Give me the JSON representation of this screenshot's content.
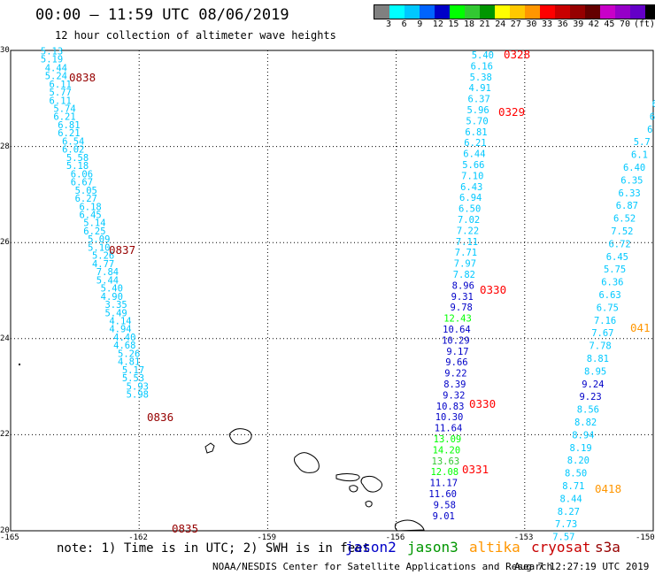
{
  "header": {
    "title": "00:00 — 11:59 UTC 08/06/2019",
    "subtitle": "12 hour collection of altimeter wave heights"
  },
  "colorbar": {
    "colors": [
      "#808080",
      "#00ffff",
      "#00c8ff",
      "#0064ff",
      "#0000c8",
      "#00ff00",
      "#32c832",
      "#009600",
      "#ffff00",
      "#ffc800",
      "#ff9600",
      "#ff0000",
      "#c80000",
      "#960000",
      "#640000",
      "#c800c8",
      "#9600c8",
      "#6400c8",
      "#000000"
    ],
    "labels": [
      "3",
      "6",
      "9",
      "12",
      "15",
      "18",
      "21",
      "24",
      "27",
      "30",
      "33",
      "36",
      "39",
      "42",
      "45",
      "70"
    ],
    "unit": "(ft)"
  },
  "axes": {
    "lat_ticks": [
      "30",
      "28",
      "26",
      "24",
      "22",
      "20"
    ],
    "lon_ticks": [
      "-165",
      "-162",
      "-159",
      "-156",
      "-153",
      "-150"
    ],
    "lat_range": [
      20,
      30
    ],
    "lon_range": [
      -165,
      -150
    ],
    "grid": "dotted"
  },
  "satellite_colors": {
    "jason2": "#0000c8",
    "jason3": "#009600",
    "altika": "#ff9600",
    "cryosat": "#c80000",
    "s3a": "#960000"
  },
  "tracks": [
    {
      "satellite": "s3a",
      "points": [
        {
          "lon": -164.3,
          "lat": 29.92,
          "v": "5.13",
          "c": "#00c8ff"
        },
        {
          "lon": -164.3,
          "lat": 29.75,
          "v": "5.19",
          "c": "#00c8ff"
        },
        {
          "lon": -164.2,
          "lat": 29.57,
          "v": "4.44",
          "c": "#00c8ff"
        },
        {
          "lon": -164.2,
          "lat": 29.4,
          "v": "5.24",
          "c": "#00c8ff"
        },
        {
          "lon": -164.1,
          "lat": 29.23,
          "v": "6.11",
          "c": "#00c8ff"
        },
        {
          "lon": -164.1,
          "lat": 29.06,
          "v": "5.77",
          "c": "#00c8ff"
        },
        {
          "lon": -164.1,
          "lat": 28.89,
          "v": "6.11",
          "c": "#00c8ff"
        },
        {
          "lon": -164.0,
          "lat": 28.72,
          "v": "5.74",
          "c": "#00c8ff"
        },
        {
          "lon": -164.0,
          "lat": 28.55,
          "v": "6.21",
          "c": "#00c8ff"
        },
        {
          "lon": -163.9,
          "lat": 28.38,
          "v": "6.81",
          "c": "#00c8ff"
        },
        {
          "lon": -163.9,
          "lat": 28.21,
          "v": "6.21",
          "c": "#00c8ff"
        },
        {
          "lon": -163.8,
          "lat": 28.04,
          "v": "6.54",
          "c": "#00c8ff"
        },
        {
          "lon": -163.8,
          "lat": 27.87,
          "v": "6.02",
          "c": "#00c8ff"
        },
        {
          "lon": -163.7,
          "lat": 27.7,
          "v": "5.58",
          "c": "#00c8ff"
        },
        {
          "lon": -163.7,
          "lat": 27.53,
          "v": "5.18",
          "c": "#00c8ff"
        },
        {
          "lon": -163.6,
          "lat": 27.36,
          "v": "6.06",
          "c": "#00c8ff"
        },
        {
          "lon": -163.6,
          "lat": 27.19,
          "v": "6.67",
          "c": "#00c8ff"
        },
        {
          "lon": -163.5,
          "lat": 27.02,
          "v": "5.05",
          "c": "#00c8ff"
        },
        {
          "lon": -163.5,
          "lat": 26.85,
          "v": "6.27",
          "c": "#00c8ff"
        },
        {
          "lon": -163.4,
          "lat": 26.68,
          "v": "6.18",
          "c": "#00c8ff"
        },
        {
          "lon": -163.4,
          "lat": 26.51,
          "v": "6.45",
          "c": "#00c8ff"
        },
        {
          "lon": -163.3,
          "lat": 26.34,
          "v": "5.14",
          "c": "#00c8ff"
        },
        {
          "lon": -163.3,
          "lat": 26.17,
          "v": "6.25",
          "c": "#00c8ff"
        },
        {
          "lon": -163.2,
          "lat": 26.0,
          "v": "5.09",
          "c": "#00c8ff"
        },
        {
          "lon": -163.2,
          "lat": 25.83,
          "v": "5.10",
          "c": "#00c8ff"
        },
        {
          "lon": -163.1,
          "lat": 25.66,
          "v": "5.26",
          "c": "#00c8ff"
        },
        {
          "lon": -163.1,
          "lat": 25.49,
          "v": "4.77",
          "c": "#00c8ff"
        },
        {
          "lon": -163.0,
          "lat": 25.32,
          "v": "7.84",
          "c": "#00c8ff"
        },
        {
          "lon": -163.0,
          "lat": 25.15,
          "v": "5.44",
          "c": "#00c8ff"
        },
        {
          "lon": -162.9,
          "lat": 24.98,
          "v": "5.40",
          "c": "#00c8ff"
        },
        {
          "lon": -162.9,
          "lat": 24.81,
          "v": "4.90",
          "c": "#00c8ff"
        },
        {
          "lon": -162.8,
          "lat": 24.64,
          "v": "3.35",
          "c": "#00c8ff"
        },
        {
          "lon": -162.8,
          "lat": 24.47,
          "v": "5.49",
          "c": "#00c8ff"
        },
        {
          "lon": -162.7,
          "lat": 24.3,
          "v": "4.14",
          "c": "#00c8ff"
        },
        {
          "lon": -162.7,
          "lat": 24.13,
          "v": "4.94",
          "c": "#00c8ff"
        },
        {
          "lon": -162.6,
          "lat": 23.96,
          "v": "4.40",
          "c": "#00c8ff"
        },
        {
          "lon": -162.6,
          "lat": 23.79,
          "v": "4.68",
          "c": "#00c8ff"
        },
        {
          "lon": -162.5,
          "lat": 23.62,
          "v": "5.26",
          "c": "#00c8ff"
        },
        {
          "lon": -162.5,
          "lat": 23.45,
          "v": "4.81",
          "c": "#00c8ff"
        },
        {
          "lon": -162.4,
          "lat": 23.28,
          "v": "5.17",
          "c": "#00c8ff"
        },
        {
          "lon": -162.4,
          "lat": 23.11,
          "v": "5.53",
          "c": "#00c8ff"
        },
        {
          "lon": -162.3,
          "lat": 22.94,
          "v": "5.93",
          "c": "#00c8ff"
        },
        {
          "lon": -162.3,
          "lat": 22.77,
          "v": "5.98",
          "c": "#00c8ff"
        }
      ]
    }
  ],
  "pass_labels": [
    {
      "text": "0838",
      "c": "#960000"
    },
    {
      "text": "0837",
      "c": "#960000"
    },
    {
      "text": "0836",
      "c": "#960000"
    },
    {
      "text": "0835",
      "c": "#960000"
    },
    {
      "text": "0328",
      "c": "#ff0000"
    },
    {
      "text": "0329",
      "c": "#ff0000"
    },
    {
      "text": "0330",
      "c": "#ff0000"
    },
    {
      "text": "0330",
      "c": "#ff0000"
    },
    {
      "text": "0331",
      "c": "#ff0000"
    },
    {
      "text": "0418",
      "c": "#ff9600"
    },
    {
      "text": "041",
      "c": "#ff9600"
    }
  ],
  "footer": {
    "note": "note: 1) Time is in UTC; 2) SWH is in feet",
    "legend": [
      {
        "label": "jason2",
        "color": "#0000c8"
      },
      {
        "label": "jason3",
        "color": "#009600"
      },
      {
        "label": "altika",
        "color": "#ff9600"
      },
      {
        "label": "cryosat",
        "color": "#c80000"
      },
      {
        "label": "s3a",
        "color": "#960000"
      }
    ],
    "credit": "NOAA/NESDIS Center for Satellite Applications and Research",
    "timestamp": "Aug  7 12:27:19 UTC 2019"
  }
}
